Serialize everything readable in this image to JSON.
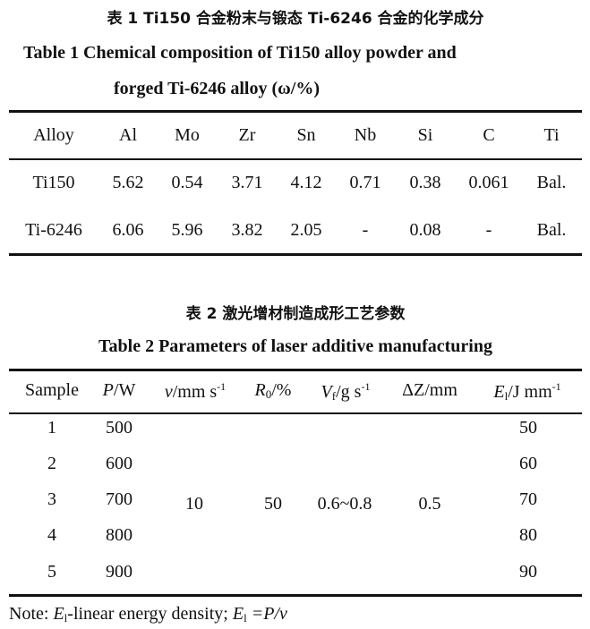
{
  "table1": {
    "title_cn": "表 1   Ti150 合金粉末与锻态 Ti-6246 合金的化学成分",
    "title_en_line1": "Table 1    Chemical composition of Ti150 alloy powder and",
    "title_en_line2": "forged Ti-6246 alloy (ω/%)",
    "headers": [
      "Alloy",
      "Al",
      "Mo",
      "Zr",
      "Sn",
      "Nb",
      "Si",
      "C",
      "Ti"
    ],
    "rows": [
      [
        "Ti150",
        "5.62",
        "0.54",
        "3.71",
        "4.12",
        "0.71",
        "0.38",
        "0.061",
        "Bal."
      ],
      [
        "Ti-6246",
        "6.06",
        "5.96",
        "3.82",
        "2.05",
        "-",
        "0.08",
        "-",
        "Bal."
      ]
    ]
  },
  "table2": {
    "title_cn": "表 2    激光增材制造成形工艺参数",
    "title_en": "Table 2  Parameters of laser additive manufacturing",
    "headers": {
      "sample": "Sample",
      "p": "P",
      "p_unit": "/W",
      "v": "v",
      "v_unit": "/mm s",
      "v_exp": "-1",
      "r": "R",
      "r_sub": "0",
      "r_unit": "/%",
      "vf": "V",
      "vf_sub": "f",
      "vf_unit": "/g s",
      "vf_exp": "-1",
      "dz": "ΔZ/mm",
      "e": "E",
      "e_sub": "l",
      "e_unit": "/J mm",
      "e_exp": "-1"
    },
    "samples": [
      "1",
      "2",
      "3",
      "4",
      "5"
    ],
    "power": [
      "500",
      "600",
      "700",
      "800",
      "900"
    ],
    "energy": [
      "50",
      "60",
      "70",
      "80",
      "90"
    ],
    "speed": "10",
    "r0": "50",
    "vf": "0.6~0.8",
    "dz": "0.5"
  },
  "note": {
    "prefix": "Note: ",
    "e": "E",
    "sub": "l",
    "text": "-linear energy density; ",
    "e2": "E",
    "sub2": "l",
    "eq": " =P/v"
  }
}
